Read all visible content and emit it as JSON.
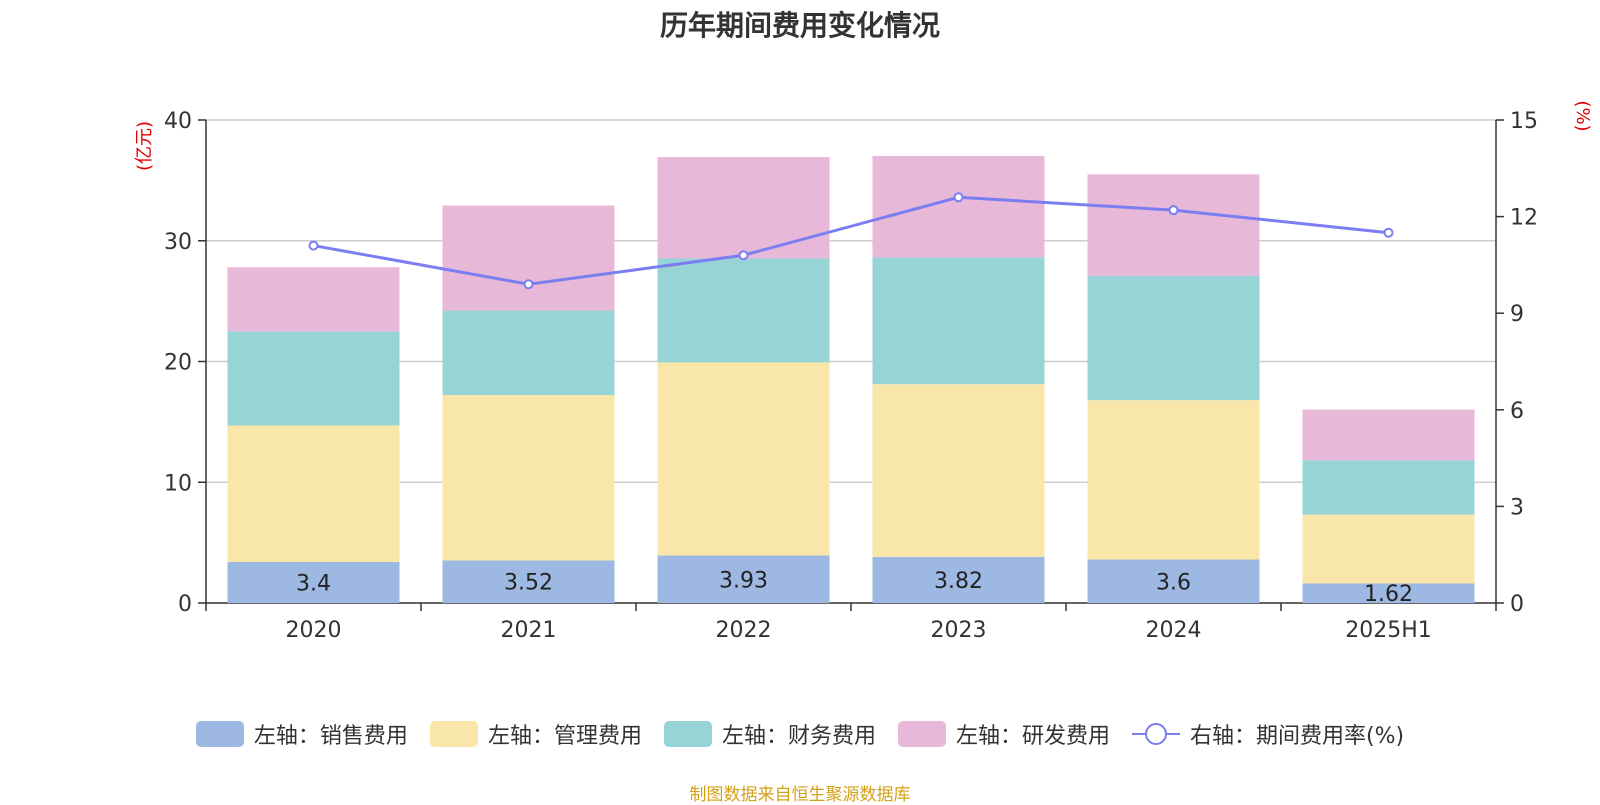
{
  "title": "历年期间费用变化情况",
  "footer": "制图数据来自恒生聚源数据库",
  "chart_data": {
    "type": "bar",
    "stacked": true,
    "categories": [
      "2020",
      "2021",
      "2022",
      "2023",
      "2024",
      "2025H1"
    ],
    "series": [
      {
        "name": "左轴：销售费用",
        "axis": "left",
        "color": "#9db8e2",
        "values": [
          3.4,
          3.52,
          3.93,
          3.82,
          3.6,
          1.62
        ],
        "labels": [
          "3.4",
          "3.52",
          "3.93",
          "3.82",
          "3.6",
          "1.62"
        ]
      },
      {
        "name": "左轴：管理费用",
        "axis": "left",
        "color": "#f8e7a8",
        "values": [
          11.3,
          13.7,
          16.0,
          14.3,
          13.2,
          5.7
        ]
      },
      {
        "name": "左轴：财务费用",
        "axis": "left",
        "color": "#97d4d5",
        "values": [
          7.8,
          7.0,
          8.6,
          10.5,
          10.3,
          4.5
        ]
      },
      {
        "name": "左轴：研发费用",
        "axis": "left",
        "color": "#e8b8d9",
        "values": [
          5.3,
          8.7,
          8.4,
          8.4,
          8.4,
          4.2
        ]
      },
      {
        "name": "右轴：期间费用率(%)",
        "axis": "right",
        "type": "line",
        "color": "#7a7ef0",
        "values": [
          11.1,
          9.9,
          10.8,
          12.6,
          12.2,
          11.5
        ]
      }
    ],
    "left_axis": {
      "unit": "(亿元)",
      "ylim": [
        0,
        40
      ],
      "ticks": [
        "0",
        "10",
        "20",
        "30",
        "40"
      ]
    },
    "right_axis": {
      "unit": "(%)",
      "ylim": [
        0,
        15
      ],
      "ticks": [
        "0",
        "3",
        "6",
        "9",
        "12",
        "15"
      ]
    },
    "grid": true,
    "legend": "bottom"
  }
}
